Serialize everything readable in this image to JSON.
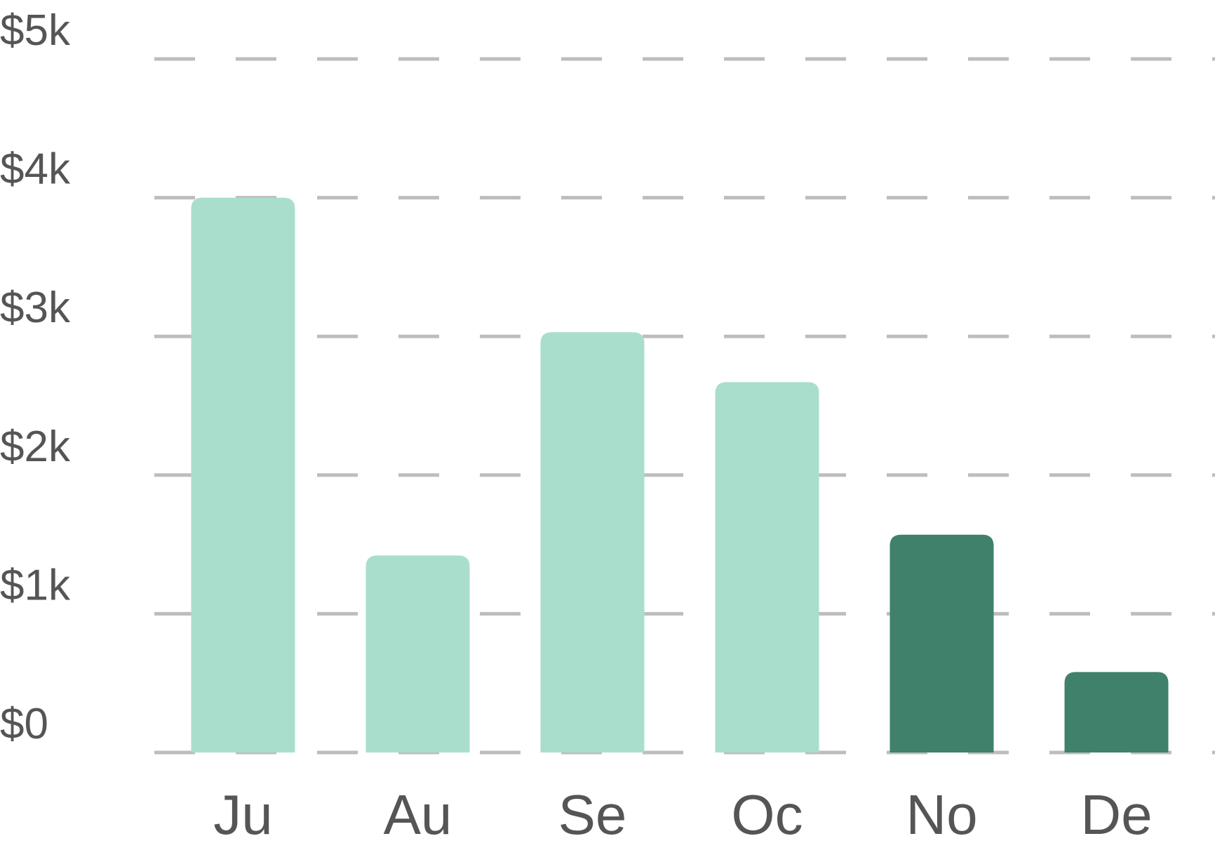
{
  "chart_data": {
    "type": "bar",
    "title": "",
    "xlabel": "",
    "ylabel": "",
    "categories": [
      "Ju",
      "Au",
      "Se",
      "Oc",
      "No",
      "De"
    ],
    "values": [
      4000,
      1420,
      3030,
      2670,
      1570,
      580
    ],
    "ylim": [
      0,
      5000
    ],
    "y_ticks": [
      0,
      1000,
      2000,
      3000,
      4000,
      5000
    ],
    "y_tick_labels": [
      "$0",
      "$1k",
      "$2k",
      "$3k",
      "$4k",
      "$5k"
    ],
    "grid": true,
    "grid_style": "dashed",
    "highlighted": [
      false,
      false,
      false,
      false,
      true,
      true
    ],
    "colors": {
      "bar_default": "#aadecc",
      "bar_highlight": "#3f816b",
      "grid": "#bdbdbd",
      "text": "#555555"
    }
  }
}
